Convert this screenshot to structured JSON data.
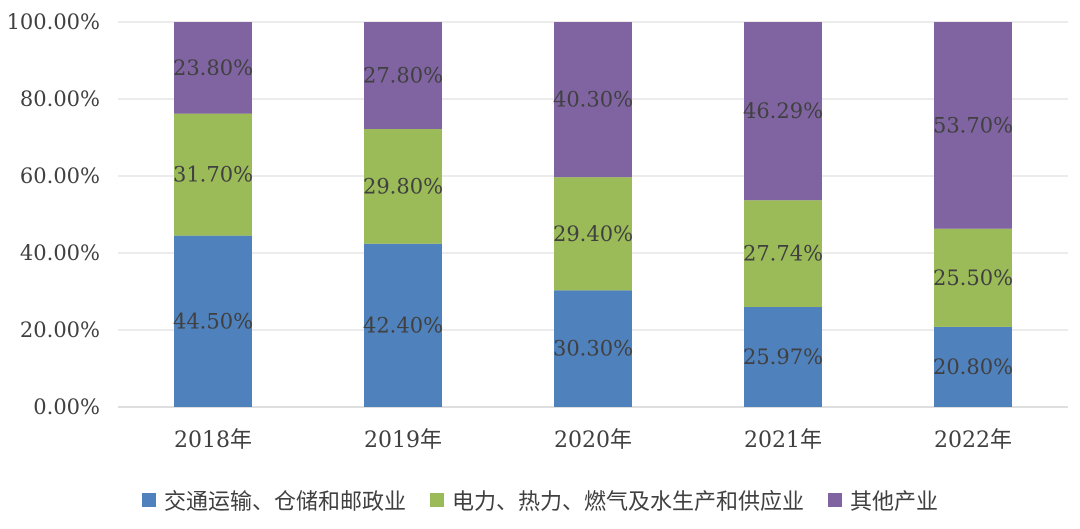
{
  "chart_data": {
    "type": "bar",
    "stacked": true,
    "categories": [
      "2018年",
      "2019年",
      "2020年",
      "2021年",
      "2022年"
    ],
    "ylim": [
      0,
      100
    ],
    "y_ticks": [
      "0.00%",
      "20.00%",
      "40.00%",
      "60.00%",
      "80.00%",
      "100.00%"
    ],
    "grid": true,
    "legend_position": "bottom",
    "series": [
      {
        "name": "交通运输、仓储和邮政业",
        "color": "#4f81bd",
        "values": [
          44.5,
          42.4,
          30.3,
          25.97,
          20.8
        ],
        "labels": [
          "44.50%",
          "42.40%",
          "30.30%",
          "25.97%",
          "20.80%"
        ]
      },
      {
        "name": "电力、热力、燃气及水生产和供应业",
        "color": "#9bbb59",
        "values": [
          31.7,
          29.8,
          29.4,
          27.74,
          25.5
        ],
        "labels": [
          "31.70%",
          "29.80%",
          "29.40%",
          "27.74%",
          "25.50%"
        ]
      },
      {
        "name": "其他产业",
        "color": "#8064a2",
        "values": [
          23.8,
          27.8,
          40.3,
          46.29,
          53.7
        ],
        "labels": [
          "23.80%",
          "27.80%",
          "40.30%",
          "46.29%",
          "53.70%"
        ]
      }
    ]
  }
}
